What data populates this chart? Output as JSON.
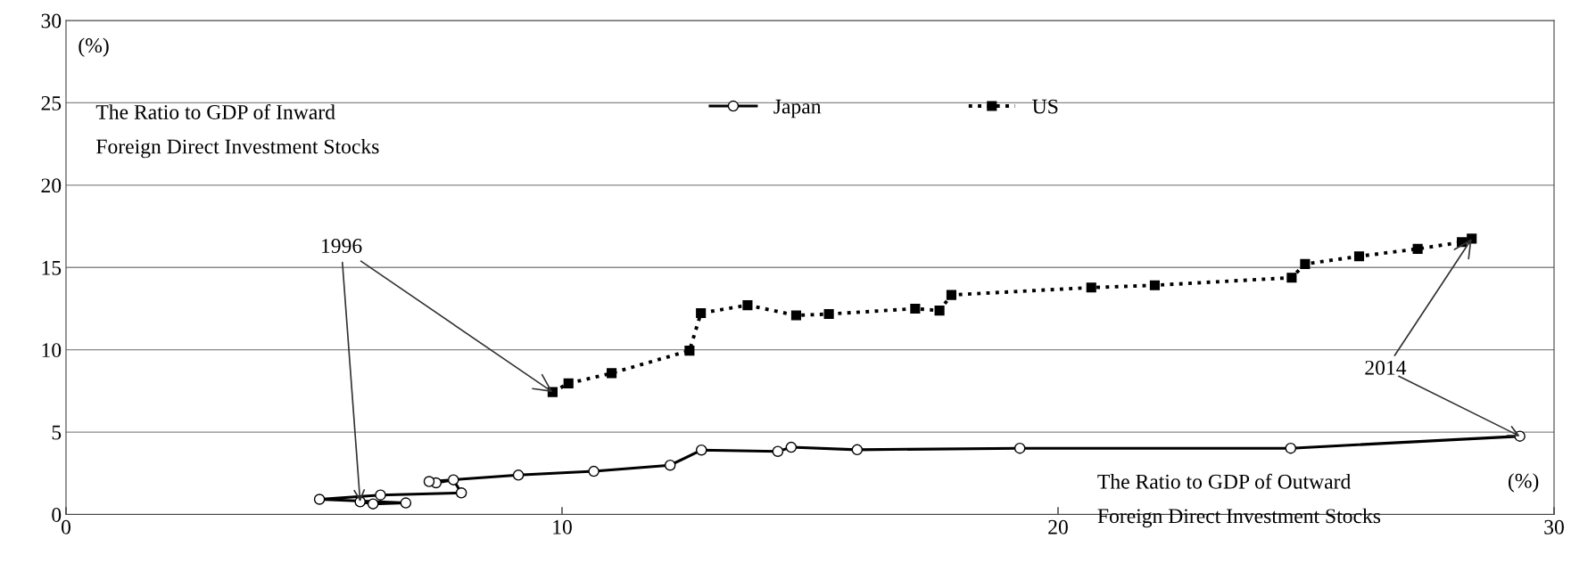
{
  "chart_data": {
    "type": "line",
    "xlim": [
      0,
      30
    ],
    "ylim": [
      0,
      30
    ],
    "xticks": [
      0,
      10,
      20,
      30
    ],
    "yticks": [
      0,
      5,
      10,
      15,
      20,
      25,
      30
    ],
    "grid": "y",
    "legend": "top",
    "annotations": [
      "(%)",
      "The Ratio to GDP of Inward\nForeign Direct Investment Stocks",
      "(%)",
      "The Ratio to GDP of Outward\nForeign Direct Investment Stocks",
      {
        "text": "1996",
        "x": 9.81,
        "y": 7.43
      },
      {
        "text": "2014",
        "x": 28.34,
        "y": 16.75
      }
    ],
    "series": [
      {
        "name": "Japan",
        "color": "#000000",
        "marker": "circle",
        "line_style": "solid",
        "x": [
          5.93,
          6.19,
          6.85,
          5.11,
          6.34,
          7.97,
          7.81,
          7.46,
          7.32,
          9.12,
          10.64,
          12.18,
          12.81,
          14.35,
          14.62,
          15.95,
          19.23,
          24.69,
          29.31
        ],
        "values": [
          0.77,
          0.64,
          0.7,
          0.92,
          1.18,
          1.31,
          2.1,
          1.92,
          2.0,
          2.39,
          2.62,
          2.99,
          3.91,
          3.83,
          4.08,
          3.93,
          4.02,
          4.02,
          4.75
        ]
      },
      {
        "name": "US",
        "color": "#000000",
        "marker": "square",
        "line_style": "dotted",
        "x": [
          9.81,
          10.13,
          11.0,
          12.57,
          12.8,
          13.74,
          14.72,
          15.38,
          17.12,
          17.61,
          17.85,
          20.67,
          21.95,
          24.71,
          24.98,
          26.07,
          27.25,
          28.14,
          28.34
        ],
        "values": [
          7.43,
          7.96,
          8.58,
          9.95,
          12.23,
          12.71,
          12.09,
          12.17,
          12.5,
          12.38,
          13.33,
          13.78,
          13.92,
          14.38,
          15.21,
          15.68,
          16.13,
          16.54,
          16.75
        ]
      }
    ]
  }
}
